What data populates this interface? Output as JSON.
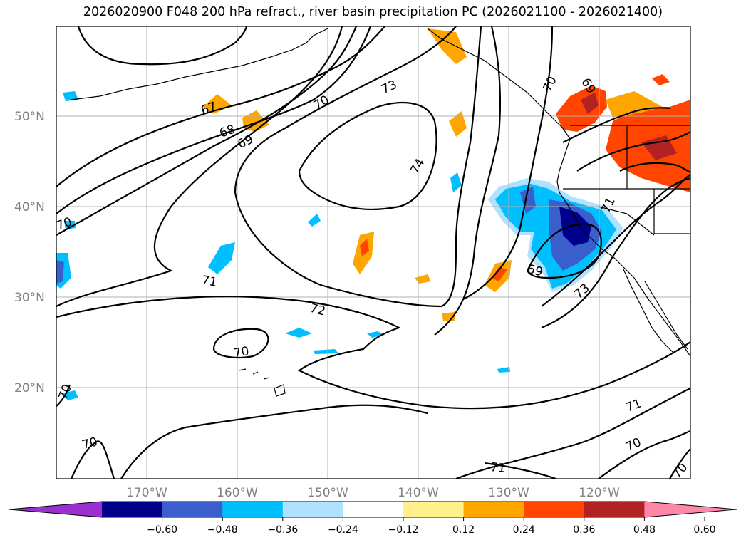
{
  "title": "2026020900 F048 200 hPa refract., river basin precipitation PC (2026021100 - 2026021400)",
  "lat_labels": [
    "50°N",
    "40°N",
    "30°N",
    "20°N"
  ],
  "lon_labels": [
    "170°W",
    "160°W",
    "150°W",
    "140°W",
    "130°W",
    "120°W"
  ],
  "contour_labels": [
    "67",
    "68",
    "69",
    "70",
    "70",
    "73",
    "74",
    "70",
    "69",
    "69",
    "71",
    "71",
    "72",
    "70",
    "73",
    "70",
    "70",
    "71",
    "70",
    "71",
    "70"
  ],
  "colorbar": {
    "ticks": [
      "−0.60",
      "−0.48",
      "−0.36",
      "−0.24",
      "−0.12",
      "0.12",
      "0.24",
      "0.36",
      "0.48",
      "0.60"
    ],
    "colors": [
      "#9b30d0",
      "#00008b",
      "#3a5fcd",
      "#00bfff",
      "#b0e2ff",
      "#ffffff",
      "#fff08c",
      "#ffa500",
      "#ff4500",
      "#b22222",
      "#ff88aa"
    ]
  },
  "colors": {
    "grid": "#b0b0b0",
    "contour": "#000000"
  }
}
